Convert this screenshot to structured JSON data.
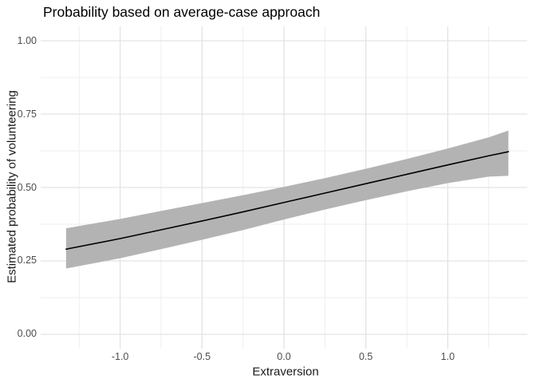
{
  "chart_data": {
    "type": "line",
    "title": "Probability based on average-case approach",
    "xlabel": "Extraversion",
    "ylabel": "Estimated probability of volunteering",
    "xlim": [
      -1.485,
      1.485
    ],
    "ylim": [
      -0.049,
      1.049
    ],
    "x_ticks": {
      "values": [
        -1.0,
        -0.5,
        0.0,
        0.5,
        1.0
      ],
      "labels": [
        "-1.0",
        "-0.5",
        "0.0",
        "0.5",
        "1.0"
      ]
    },
    "y_ticks": {
      "values": [
        0.0,
        0.25,
        0.5,
        0.75,
        1.0
      ],
      "labels": [
        "0.00",
        "0.25",
        "0.50",
        "0.75",
        "1.00"
      ]
    },
    "x_minor": [
      -1.25,
      -0.75,
      -0.25,
      0.25,
      0.75,
      1.25
    ],
    "y_minor": [
      0.125,
      0.375,
      0.625,
      0.875
    ],
    "grid": "major+minor",
    "legend": "none",
    "series": [
      {
        "name": "fit",
        "x": [
          -1.33,
          -1.0,
          -0.75,
          -0.5,
          -0.25,
          0.0,
          0.25,
          0.5,
          0.75,
          1.0,
          1.25,
          1.37
        ],
        "y": [
          0.29,
          0.326,
          0.356,
          0.386,
          0.417,
          0.449,
          0.481,
          0.513,
          0.545,
          0.577,
          0.608,
          0.622
        ]
      },
      {
        "name": "ci-upper",
        "x": [
          -1.33,
          -1.0,
          -0.75,
          -0.5,
          -0.25,
          0.0,
          0.25,
          0.5,
          0.75,
          1.0,
          1.25,
          1.37
        ],
        "y": [
          0.361,
          0.393,
          0.42,
          0.447,
          0.474,
          0.502,
          0.532,
          0.564,
          0.597,
          0.633,
          0.671,
          0.694
        ]
      },
      {
        "name": "ci-lower",
        "x": [
          -1.33,
          -1.0,
          -0.75,
          -0.5,
          -0.25,
          0.0,
          0.25,
          0.5,
          0.75,
          1.0,
          1.25,
          1.37
        ],
        "y": [
          0.224,
          0.259,
          0.29,
          0.322,
          0.355,
          0.391,
          0.425,
          0.457,
          0.487,
          0.515,
          0.537,
          0.54
        ]
      }
    ],
    "colors": {
      "line": "#000000",
      "ribbon": "#b3b3b3",
      "grid_major": "#e3e3e3",
      "grid_minor": "#ededed",
      "tick_text": "#4d4d4d",
      "axis_title_text": "#1a1a1a",
      "title_text": "#000000",
      "background": "#ffffff"
    }
  }
}
